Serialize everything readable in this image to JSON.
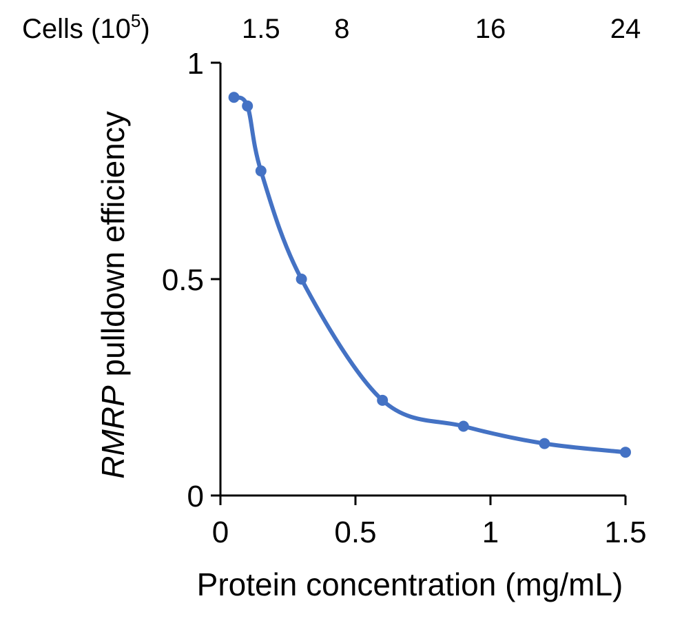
{
  "chart_data": {
    "type": "line",
    "xlabel": "Protein concentration (mg/mL)",
    "ylabel": {
      "italic_part": "RMRP",
      "rest": " pulldown efficiency"
    },
    "xlim": [
      0,
      1.5
    ],
    "ylim": [
      0,
      1
    ],
    "x_ticks": [
      0,
      0.5,
      1,
      1.5
    ],
    "x_tick_labels": [
      "0",
      "0.5",
      "1",
      "1.5"
    ],
    "y_ticks": [
      0,
      0.5,
      1
    ],
    "y_tick_labels": [
      "0",
      "0.5",
      "1"
    ],
    "top_axis": {
      "label_base": "Cells (10",
      "label_exp": "5",
      "label_close": ")",
      "ticks": [
        {
          "x": 0.15,
          "label": "1.5"
        },
        {
          "x": 0.45,
          "label": "8"
        },
        {
          "x": 1.0,
          "label": "16"
        },
        {
          "x": 1.5,
          "label": "24"
        }
      ]
    },
    "smooth": true,
    "markers": true,
    "grid": false,
    "legend": "none",
    "series": [
      {
        "color": "#4472C4",
        "x": [
          0.05,
          0.1,
          0.15,
          0.3,
          0.6,
          0.9,
          1.2,
          1.5
        ],
        "y": [
          0.92,
          0.9,
          0.75,
          0.5,
          0.22,
          0.16,
          0.12,
          0.1
        ]
      }
    ]
  }
}
